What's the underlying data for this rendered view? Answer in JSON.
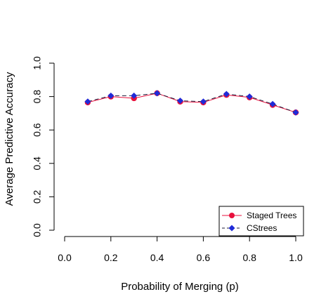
{
  "chart_data": {
    "type": "line",
    "title": "",
    "xlabel": "Probability of Merging (p)",
    "ylabel": "Average Predictive Accuracy",
    "xlim": [
      0.0,
      1.0
    ],
    "ylim": [
      0.0,
      1.0
    ],
    "x_ticks": [
      "0.0",
      "0.2",
      "0.4",
      "0.6",
      "0.8",
      "1.0"
    ],
    "y_ticks": [
      "0.0",
      "0.2",
      "0.4",
      "0.6",
      "0.8",
      "1.0"
    ],
    "x": [
      0.1,
      0.2,
      0.3,
      0.4,
      0.5,
      0.6,
      0.7,
      0.8,
      0.9,
      1.0
    ],
    "series": [
      {
        "name": "Staged Trees",
        "values": [
          0.765,
          0.8,
          0.79,
          0.82,
          0.77,
          0.765,
          0.81,
          0.795,
          0.75,
          0.705
        ],
        "color": "#e8103c",
        "line_color": "#e8103c",
        "marker": "circle",
        "line_style": "solid"
      },
      {
        "name": "CStrees",
        "values": [
          0.77,
          0.805,
          0.805,
          0.82,
          0.775,
          0.77,
          0.815,
          0.8,
          0.755,
          0.705
        ],
        "color": "#1f2bd8",
        "line_color": "#1b1b3a",
        "marker": "diamond",
        "line_style": "dashed"
      }
    ],
    "grid": false,
    "legend_position": "bottom-right"
  }
}
